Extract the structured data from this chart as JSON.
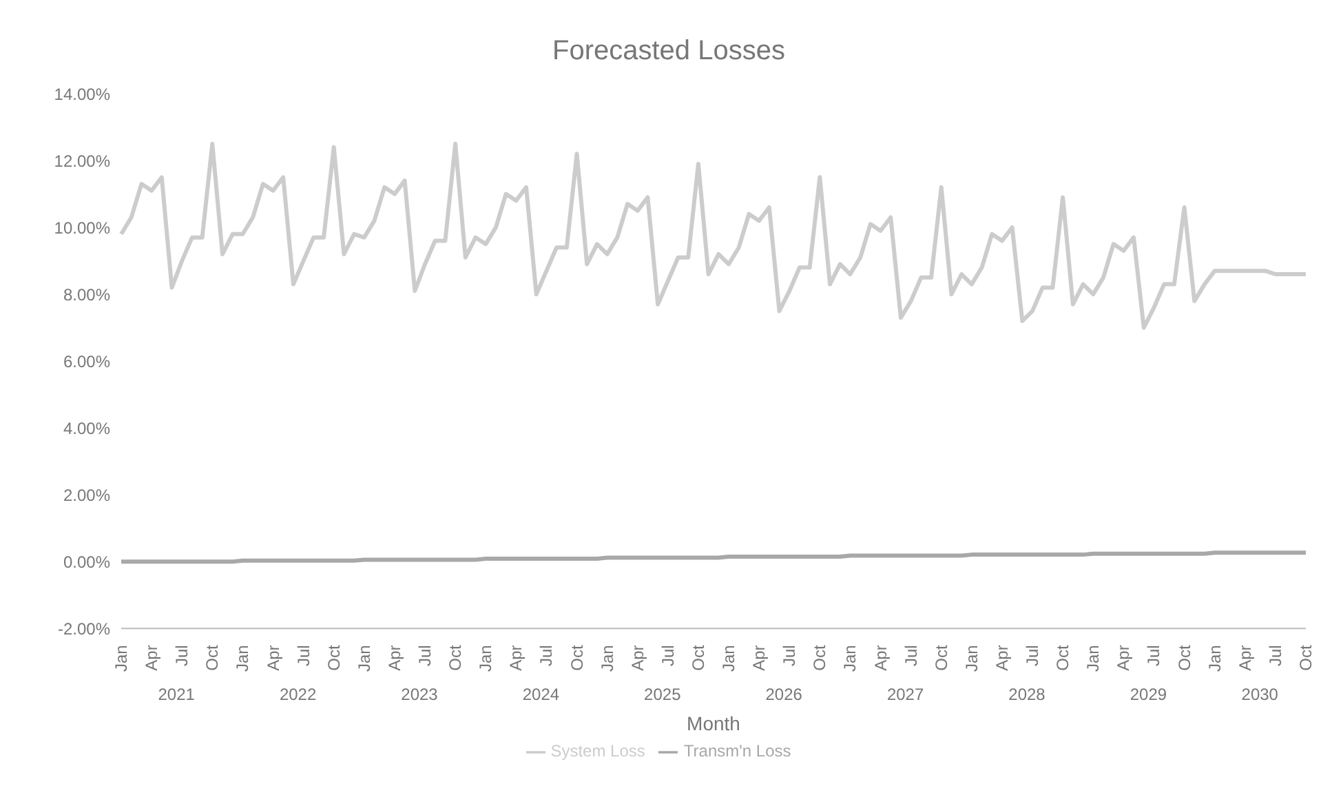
{
  "chart_data": {
    "type": "line",
    "title": "Forecasted Losses",
    "xlabel": "Month",
    "categories": [
      "Jan",
      null,
      null,
      "Apr",
      null,
      null,
      "Jul",
      null,
      null,
      "Oct",
      null,
      null,
      "Jan",
      null,
      null,
      "Apr",
      null,
      null,
      "Jul",
      null,
      null,
      "Oct",
      null,
      null,
      "Jan",
      null,
      null,
      "Apr",
      null,
      null,
      "Jul",
      null,
      null,
      "Oct",
      null,
      null,
      "Jan",
      null,
      null,
      "Apr",
      null,
      null,
      "Jul",
      null,
      null,
      "Oct",
      null,
      null,
      "Jan",
      null,
      null,
      "Apr",
      null,
      null,
      "Jul",
      null,
      null,
      "Oct",
      null,
      null,
      "Jan",
      null,
      null,
      "Apr",
      null,
      null,
      "Jul",
      null,
      null,
      "Oct",
      null,
      null,
      "Jan",
      null,
      null,
      "Apr",
      null,
      null,
      "Jul",
      null,
      null,
      "Oct",
      null,
      null,
      "Jan",
      null,
      null,
      "Apr",
      null,
      null,
      "Jul",
      null,
      null,
      "Oct",
      null,
      null,
      "Jan",
      null,
      null,
      "Apr",
      null,
      null,
      "Jul",
      null,
      null,
      "Oct",
      null,
      null,
      "Jan",
      null,
      null,
      "Apr",
      null,
      null,
      "Jul",
      null,
      null,
      "Oct"
    ],
    "annotations": [
      "2021",
      "2022",
      "2023",
      "2024",
      "2025",
      "2026",
      "2027",
      "2028",
      "2029",
      "2030"
    ],
    "series": [
      {
        "name": "Transm'n Loss",
        "color": "#a8a8a8",
        "values": [
          0.0,
          0.0,
          0.0,
          0.0,
          0.0,
          0.0,
          0.0,
          0.0,
          0.0,
          0.0,
          0.0,
          0.0,
          0.03,
          0.03,
          0.03,
          0.03,
          0.03,
          0.03,
          0.03,
          0.03,
          0.03,
          0.03,
          0.03,
          0.03,
          0.06,
          0.06,
          0.06,
          0.06,
          0.06,
          0.06,
          0.06,
          0.06,
          0.06,
          0.06,
          0.06,
          0.06,
          0.09,
          0.09,
          0.09,
          0.09,
          0.09,
          0.09,
          0.09,
          0.09,
          0.09,
          0.09,
          0.09,
          0.09,
          0.12,
          0.12,
          0.12,
          0.12,
          0.12,
          0.12,
          0.12,
          0.12,
          0.12,
          0.12,
          0.12,
          0.12,
          0.15,
          0.15,
          0.15,
          0.15,
          0.15,
          0.15,
          0.15,
          0.15,
          0.15,
          0.15,
          0.15,
          0.15,
          0.18,
          0.18,
          0.18,
          0.18,
          0.18,
          0.18,
          0.18,
          0.18,
          0.18,
          0.18,
          0.18,
          0.18,
          0.21,
          0.21,
          0.21,
          0.21,
          0.21,
          0.21,
          0.21,
          0.21,
          0.21,
          0.21,
          0.21,
          0.21,
          0.24,
          0.24,
          0.24,
          0.24,
          0.24,
          0.24,
          0.24,
          0.24,
          0.24,
          0.24,
          0.24,
          0.24,
          0.27,
          0.27,
          0.27,
          0.27,
          0.27,
          0.27,
          0.27,
          0.27,
          0.27,
          0.27
        ]
      },
      {
        "name": "System Loss",
        "color": "#cccccc",
        "values": [
          9.8,
          10.3,
          11.3,
          11.1,
          11.5,
          8.2,
          9.0,
          9.7,
          9.7,
          12.5,
          9.2,
          9.8,
          9.8,
          10.3,
          11.3,
          11.1,
          11.5,
          8.3,
          9.0,
          9.7,
          9.7,
          12.4,
          9.2,
          9.8,
          9.7,
          10.2,
          11.2,
          11.0,
          11.4,
          8.1,
          8.9,
          9.6,
          9.6,
          12.5,
          9.1,
          9.7,
          9.5,
          10.0,
          11.0,
          10.8,
          11.2,
          8.0,
          8.7,
          9.4,
          9.4,
          12.2,
          8.9,
          9.5,
          9.2,
          9.7,
          10.7,
          10.5,
          10.9,
          7.7,
          8.4,
          9.1,
          9.1,
          11.9,
          8.6,
          9.2,
          8.9,
          9.4,
          10.4,
          10.2,
          10.6,
          7.5,
          8.1,
          8.8,
          8.8,
          11.5,
          8.3,
          8.9,
          8.6,
          9.1,
          10.1,
          9.9,
          10.3,
          7.3,
          7.8,
          8.5,
          8.5,
          11.2,
          8.0,
          8.6,
          8.3,
          8.8,
          9.8,
          9.6,
          10.0,
          7.2,
          7.5,
          8.2,
          8.2,
          10.9,
          7.7,
          8.3,
          8.0,
          8.5,
          9.5,
          9.3,
          9.7,
          7.0,
          7.6,
          8.3,
          8.3,
          10.6,
          7.8,
          8.3,
          8.7,
          8.7,
          8.7,
          8.7,
          8.7,
          8.7,
          8.6,
          8.6,
          8.6,
          8.6
        ]
      }
    ],
    "ylim": [
      -2,
      14
    ],
    "yticks": [
      {
        "value": -2,
        "label": "-2.00%"
      },
      {
        "value": 0,
        "label": "0.00%"
      },
      {
        "value": 2,
        "label": "2.00%"
      },
      {
        "value": 4,
        "label": "4.00%"
      },
      {
        "value": 6,
        "label": "6.00%"
      },
      {
        "value": 8,
        "label": "8.00%"
      },
      {
        "value": 10,
        "label": "10.00%"
      },
      {
        "value": 12,
        "label": "12.00%"
      },
      {
        "value": 14,
        "label": "14.00%"
      }
    ],
    "grid": false,
    "legend": "bottom",
    "marker": "none",
    "line_style": "solid"
  }
}
